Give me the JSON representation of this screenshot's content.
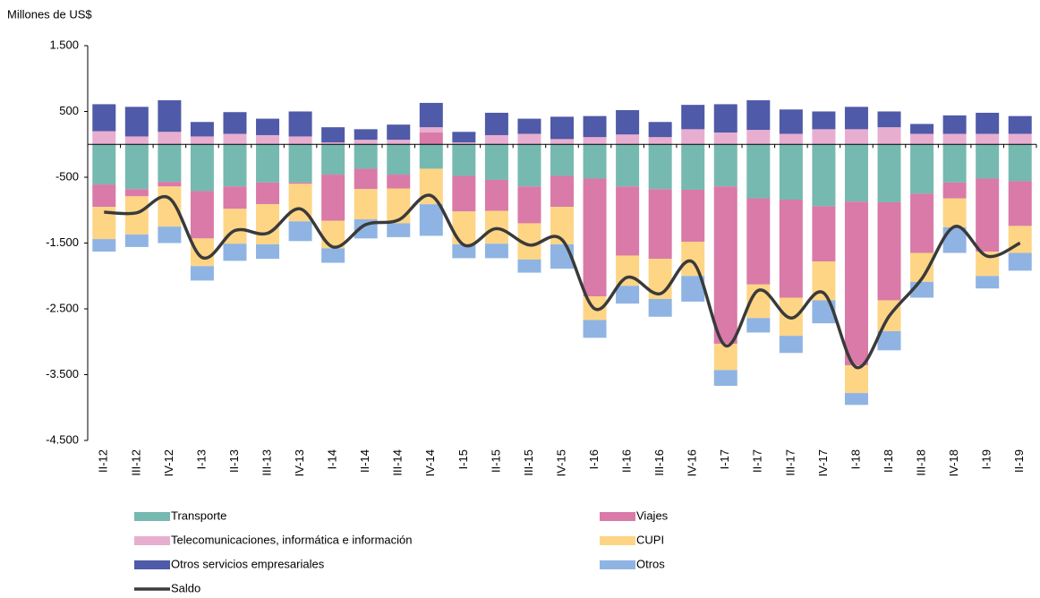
{
  "chart_data": {
    "type": "bar",
    "stacked": true,
    "y_label": "Millones de US$",
    "categories": [
      "II-12",
      "III-12",
      "IV-12",
      "I-13",
      "II-13",
      "III-13",
      "IV-13",
      "I-14",
      "II-14",
      "III-14",
      "IV-14",
      "I-15",
      "II-15",
      "III-15",
      "IV-15",
      "I-16",
      "II-16",
      "III-16",
      "IV-16",
      "I-17",
      "II-17",
      "III-17",
      "IV-17",
      "I-18",
      "II-18",
      "III-18",
      "IV-18",
      "I-19",
      "II-19"
    ],
    "ylim": [
      -4500,
      1500
    ],
    "yticks": [
      {
        "value": 1500,
        "label": "1.500"
      },
      500,
      -500,
      {
        "value": -1500,
        "label": "-1.500"
      },
      {
        "value": -2500,
        "label": "-2.500"
      },
      {
        "value": -3500,
        "label": "-3.500"
      },
      {
        "value": -4500,
        "label": "-4.500"
      }
    ],
    "series": [
      {
        "name": "Transporte",
        "color": "#76b9b0",
        "values": [
          -610,
          -680,
          -570,
          -710,
          -640,
          -580,
          -580,
          -460,
          -370,
          -460,
          -370,
          -480,
          -540,
          -640,
          -480,
          -520,
          -640,
          -680,
          -690,
          -640,
          -820,
          -840,
          -940,
          -870,
          -880,
          -750,
          -580,
          -520,
          -560
        ]
      },
      {
        "name": "Viajes",
        "color": "#d97aa8",
        "values": [
          -340,
          -110,
          -70,
          -720,
          -340,
          -330,
          -20,
          -700,
          -310,
          -210,
          180,
          -540,
          -470,
          -560,
          -470,
          -1790,
          -1050,
          -1060,
          -790,
          -2390,
          -1310,
          -1490,
          -840,
          -2490,
          -1490,
          -900,
          -240,
          -1110,
          -680
        ]
      },
      {
        "name": "Telecomunicaciones, informática e información",
        "color": "#e8aed0",
        "values": [
          200,
          120,
          190,
          120,
          160,
          140,
          120,
          30,
          70,
          70,
          80,
          30,
          140,
          160,
          80,
          110,
          150,
          110,
          230,
          180,
          220,
          160,
          230,
          230,
          260,
          160,
          160,
          160,
          160
        ]
      },
      {
        "name": "CUPI",
        "color": "#fdd585",
        "values": [
          -490,
          -580,
          -610,
          -420,
          -530,
          -610,
          -570,
          -420,
          -460,
          -530,
          -540,
          -500,
          -500,
          -550,
          -570,
          -360,
          -460,
          -610,
          -520,
          -400,
          -510,
          -580,
          -590,
          -420,
          -470,
          -440,
          -440,
          -370,
          -410
        ]
      },
      {
        "name": "Otros servicios empresariales",
        "color": "#4f5aa8",
        "values": [
          410,
          450,
          480,
          220,
          330,
          250,
          380,
          230,
          160,
          230,
          370,
          160,
          340,
          230,
          340,
          320,
          370,
          230,
          370,
          430,
          450,
          370,
          270,
          340,
          240,
          150,
          280,
          320,
          270
        ]
      },
      {
        "name": "Otros",
        "color": "#8fb4e3",
        "values": [
          -190,
          -190,
          -250,
          -220,
          -260,
          -220,
          -300,
          -220,
          -290,
          -210,
          -480,
          -210,
          -220,
          -200,
          -370,
          -270,
          -270,
          -270,
          -390,
          -240,
          -220,
          -260,
          -350,
          -180,
          -290,
          -240,
          -390,
          -190,
          -270
        ]
      },
      {
        "name": "Saldo",
        "type": "line",
        "color": "#3a3a3a",
        "values": [
          -1030,
          -1040,
          -820,
          -1720,
          -1310,
          -1350,
          -980,
          -1560,
          -1220,
          -1150,
          -780,
          -1530,
          -1280,
          -1530,
          -1450,
          -2500,
          -2020,
          -2270,
          -1790,
          -3060,
          -2220,
          -2640,
          -2260,
          -3390,
          -2610,
          -2040,
          -1250,
          -1700,
          -1500
        ]
      }
    ]
  }
}
